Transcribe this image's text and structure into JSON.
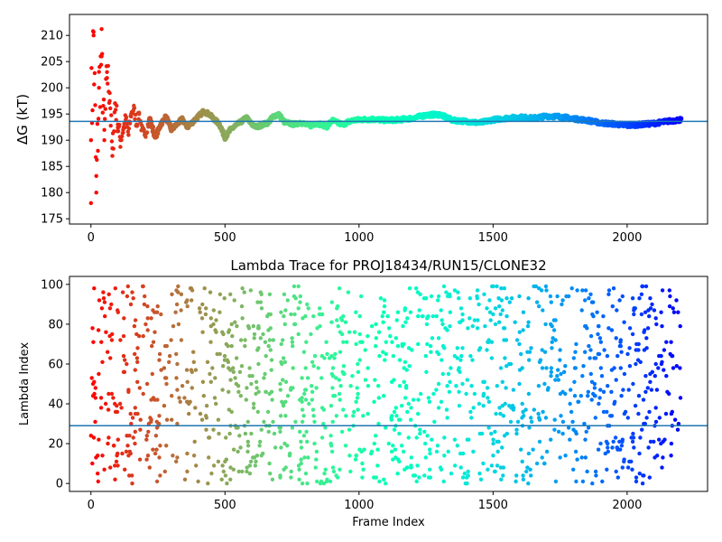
{
  "colors": {
    "hline": "#1f77b4",
    "axes": "#000000",
    "background": "#ffffff",
    "colormap": "rainbow (late frames violet, early frames red)"
  },
  "chart_data": [
    {
      "type": "scatter",
      "title": "",
      "xlabel": "",
      "ylabel": "ΔG (kT)",
      "xlim": [
        -80,
        2300
      ],
      "ylim": [
        174,
        214
      ],
      "xticks": [
        0,
        500,
        1000,
        1500,
        2000
      ],
      "yticks": [
        175,
        180,
        185,
        190,
        195,
        200,
        205,
        210
      ],
      "hline": 193.6,
      "grid": false,
      "legend": "none",
      "n_frames": 2200,
      "x": [
        0,
        10,
        20,
        30,
        40,
        50,
        60,
        70,
        80,
        90,
        100,
        110,
        120,
        130,
        140,
        150,
        160,
        170,
        180,
        190,
        200,
        220,
        240,
        260,
        280,
        300,
        320,
        340,
        360,
        380,
        400,
        420,
        440,
        460,
        480,
        500,
        520,
        540,
        560,
        580,
        600,
        620,
        640,
        660,
        680,
        700,
        720,
        740,
        760,
        780,
        800,
        820,
        840,
        860,
        880,
        900,
        920,
        940,
        960,
        980,
        1000,
        1050,
        1100,
        1150,
        1200,
        1250,
        1300,
        1350,
        1400,
        1450,
        1500,
        1550,
        1600,
        1650,
        1700,
        1750,
        1800,
        1850,
        1900,
        1950,
        2000,
        2050,
        2100,
        2150,
        2200
      ],
      "y": [
        190.0,
        210.0,
        180.0,
        200.0,
        206.0,
        190.0,
        203.0,
        199.0,
        187.0,
        197.0,
        193.0,
        190.0,
        192.0,
        194.0,
        191.0,
        195.0,
        196.0,
        193.0,
        195.0,
        192.0,
        191.0,
        194.0,
        190.5,
        193.0,
        194.5,
        192.0,
        193.0,
        194.0,
        192.5,
        193.5,
        194.5,
        195.5,
        195.0,
        194.0,
        193.0,
        190.5,
        192.0,
        192.8,
        193.5,
        194.3,
        193.0,
        192.5,
        193.0,
        193.3,
        194.5,
        195.0,
        193.5,
        193.2,
        193.0,
        193.4,
        193.0,
        192.8,
        193.2,
        193.0,
        192.6,
        193.8,
        193.3,
        193.0,
        193.5,
        193.8,
        193.9,
        194.0,
        193.8,
        193.9,
        194.2,
        194.8,
        194.9,
        193.8,
        193.6,
        193.3,
        193.9,
        194.2,
        194.4,
        194.2,
        194.6,
        194.5,
        194.1,
        193.8,
        193.3,
        193.1,
        192.8,
        193.0,
        193.2,
        193.6,
        193.9
      ]
    },
    {
      "type": "scatter",
      "title": "Lambda Trace for PROJ18434/RUN15/CLONE32",
      "xlabel": "Frame Index",
      "ylabel": "Lambda Index",
      "xlim": [
        -80,
        2300
      ],
      "ylim": [
        -4,
        104
      ],
      "xticks": [
        0,
        500,
        1000,
        1500,
        2000
      ],
      "yticks": [
        0,
        20,
        40,
        60,
        80,
        100
      ],
      "hline": 29,
      "grid": false,
      "legend": "none",
      "n_frames": 2200,
      "lambda_range": [
        0,
        99
      ],
      "n_points_shown": 1400
    }
  ]
}
